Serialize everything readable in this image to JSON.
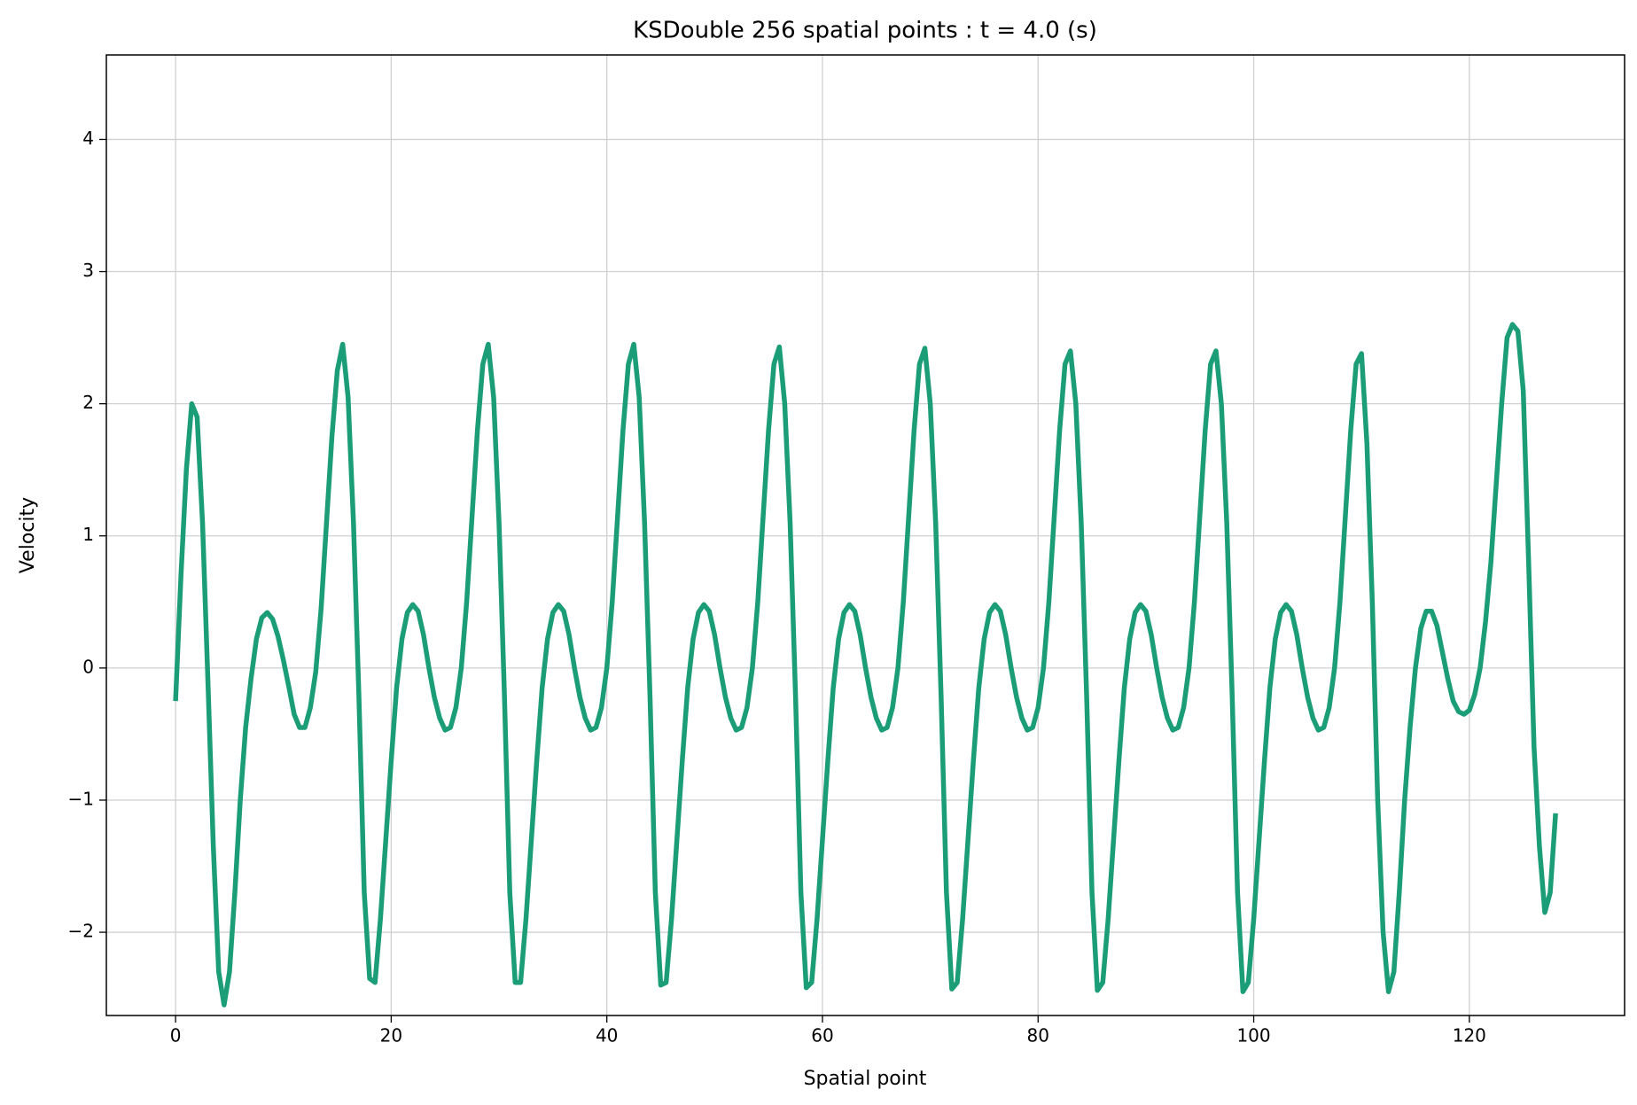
{
  "chart_data": {
    "type": "line",
    "title": "KSDouble 256 spatial points : t = 4.0 (s)",
    "xlabel": "Spatial point",
    "ylabel": "Velocity",
    "x": [
      0,
      0.5,
      1,
      1.5,
      2,
      2.5,
      3,
      3.5,
      4,
      4.5,
      5,
      5.5,
      6,
      6.5,
      7,
      7.5,
      8,
      8.5,
      9,
      9.5,
      10,
      10.5,
      11,
      11.5,
      12,
      12.5,
      13,
      13.5,
      14,
      14.5,
      15,
      15.5,
      16,
      16.5,
      17,
      17.5,
      18,
      18.5,
      19,
      19.5,
      20,
      20.5,
      21,
      21.5,
      22,
      22.5,
      23,
      23.5,
      24,
      24.5,
      25,
      25.5,
      26,
      26.5,
      27,
      27.5,
      28,
      28.5,
      29,
      29.5,
      30,
      30.5,
      31,
      31.5,
      32,
      32.5,
      33,
      33.5,
      34,
      34.5,
      35,
      35.5,
      36,
      36.5,
      37,
      37.5,
      38,
      38.5,
      39,
      39.5,
      40,
      40.5,
      41,
      41.5,
      42,
      42.5,
      43,
      43.5,
      44,
      44.5,
      45,
      45.5,
      46,
      46.5,
      47,
      47.5,
      48,
      48.5,
      49,
      49.5,
      50,
      50.5,
      51,
      51.5,
      52,
      52.5,
      53,
      53.5,
      54,
      54.5,
      55,
      55.5,
      56,
      56.5,
      57,
      57.5,
      58,
      58.5,
      59,
      59.5,
      60,
      60.5,
      61,
      61.5,
      62,
      62.5,
      63,
      63.5,
      64,
      64.5,
      65,
      65.5,
      66,
      66.5,
      67,
      67.5,
      68,
      68.5,
      69,
      69.5,
      70,
      70.5,
      71,
      71.5,
      72,
      72.5,
      73,
      73.5,
      74,
      74.5,
      75,
      75.5,
      76,
      76.5,
      77,
      77.5,
      78,
      78.5,
      79,
      79.5,
      80,
      80.5,
      81,
      81.5,
      82,
      82.5,
      83,
      83.5,
      84,
      84.5,
      85,
      85.5,
      86,
      86.5,
      87,
      87.5,
      88,
      88.5,
      89,
      89.5,
      90,
      90.5,
      91,
      91.5,
      92,
      92.5,
      93,
      93.5,
      94,
      94.5,
      95,
      95.5,
      96,
      96.5,
      97,
      97.5,
      98,
      98.5,
      99,
      99.5,
      100,
      100.5,
      101,
      101.5,
      102,
      102.5,
      103,
      103.5,
      104,
      104.5,
      105,
      105.5,
      106,
      106.5,
      107,
      107.5,
      108,
      108.5,
      109,
      109.5,
      110,
      110.5,
      111,
      111.5,
      112,
      112.5,
      113,
      113.5,
      114,
      114.5,
      115,
      115.5,
      116,
      116.5,
      117,
      117.5,
      118,
      118.5,
      119,
      119.5,
      120,
      120.5,
      121,
      121.5,
      122,
      122.5,
      123,
      123.5,
      124,
      124.5,
      125,
      125.5,
      126,
      126.5,
      127,
      127.5,
      128
    ],
    "series": [
      {
        "name": "Velocity",
        "color": "#1b9e77",
        "values": [
          -0.25,
          0.7,
          1.5,
          2.0,
          1.9,
          1.1,
          -0.1,
          -1.35,
          -2.3,
          -2.55,
          -2.3,
          -1.7,
          -1.0,
          -0.45,
          -0.08,
          0.22,
          0.38,
          0.42,
          0.37,
          0.24,
          0.06,
          -0.14,
          -0.35,
          -0.45,
          -0.45,
          -0.3,
          -0.03,
          0.45,
          1.1,
          1.75,
          2.25,
          2.45,
          2.05,
          1.1,
          -0.2,
          -1.7,
          -2.35,
          -2.38,
          -1.9,
          -1.3,
          -0.7,
          -0.15,
          0.22,
          0.42,
          0.48,
          0.43,
          0.25,
          0.0,
          -0.22,
          -0.38,
          -0.47,
          -0.45,
          -0.3,
          0.0,
          0.5,
          1.15,
          1.8,
          2.3,
          2.45,
          2.05,
          1.1,
          -0.2,
          -1.7,
          -2.38,
          -2.38,
          -1.9,
          -1.3,
          -0.7,
          -0.15,
          0.22,
          0.42,
          0.48,
          0.43,
          0.25,
          0.0,
          -0.22,
          -0.38,
          -0.47,
          -0.45,
          -0.3,
          0.0,
          0.5,
          1.15,
          1.8,
          2.3,
          2.45,
          2.05,
          1.1,
          -0.2,
          -1.7,
          -2.4,
          -2.38,
          -1.9,
          -1.3,
          -0.7,
          -0.15,
          0.22,
          0.42,
          0.48,
          0.43,
          0.25,
          0.0,
          -0.22,
          -0.38,
          -0.47,
          -0.45,
          -0.3,
          0.0,
          0.5,
          1.15,
          1.8,
          2.3,
          2.43,
          2.0,
          1.1,
          -0.2,
          -1.7,
          -2.42,
          -2.38,
          -1.9,
          -1.3,
          -0.7,
          -0.15,
          0.22,
          0.42,
          0.48,
          0.43,
          0.25,
          0.0,
          -0.22,
          -0.38,
          -0.47,
          -0.45,
          -0.3,
          0.0,
          0.5,
          1.15,
          1.8,
          2.3,
          2.42,
          2.0,
          1.1,
          -0.2,
          -1.7,
          -2.43,
          -2.38,
          -1.9,
          -1.3,
          -0.7,
          -0.15,
          0.22,
          0.42,
          0.48,
          0.43,
          0.25,
          0.0,
          -0.22,
          -0.38,
          -0.47,
          -0.45,
          -0.3,
          0.0,
          0.5,
          1.15,
          1.8,
          2.3,
          2.4,
          2.0,
          1.1,
          -0.2,
          -1.7,
          -2.44,
          -2.38,
          -1.9,
          -1.3,
          -0.7,
          -0.15,
          0.22,
          0.42,
          0.48,
          0.43,
          0.25,
          0.0,
          -0.22,
          -0.38,
          -0.47,
          -0.45,
          -0.3,
          0.0,
          0.5,
          1.15,
          1.8,
          2.3,
          2.4,
          2.0,
          1.1,
          -0.2,
          -1.7,
          -2.45,
          -2.38,
          -1.9,
          -1.3,
          -0.7,
          -0.15,
          0.22,
          0.42,
          0.48,
          0.43,
          0.25,
          0.0,
          -0.22,
          -0.38,
          -0.47,
          -0.45,
          -0.3,
          0.0,
          0.5,
          1.15,
          1.8,
          2.3,
          2.38,
          1.7,
          0.5,
          -1.0,
          -2.0,
          -2.45,
          -2.3,
          -1.7,
          -1.0,
          -0.45,
          0.0,
          0.3,
          0.43,
          0.43,
          0.32,
          0.12,
          -0.08,
          -0.25,
          -0.33,
          -0.35,
          -0.32,
          -0.2,
          0.0,
          0.35,
          0.8,
          1.4,
          2.0,
          2.5,
          2.6,
          2.55,
          2.1,
          0.8,
          -0.6,
          -1.35,
          -1.85,
          -1.7,
          -1.1
        ]
      }
    ],
    "xlim": [
      -6.42,
      134.4
    ],
    "ylim": [
      -2.63,
      4.64
    ],
    "xticks": [
      0,
      20,
      40,
      60,
      80,
      100,
      120
    ],
    "yticks": [
      {
        "value": -2,
        "label": "−2"
      },
      {
        "value": -1,
        "label": "−1"
      },
      0,
      1,
      2,
      3,
      4
    ],
    "grid": true
  }
}
